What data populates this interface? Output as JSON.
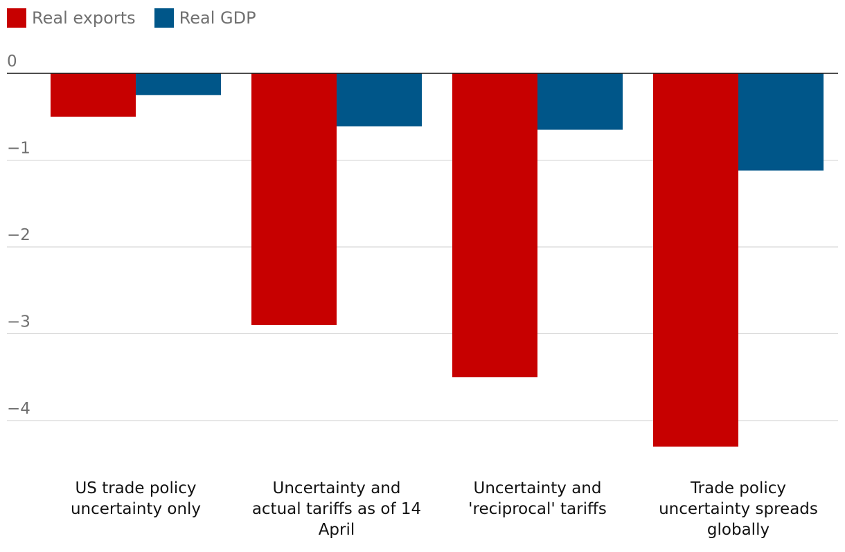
{
  "chart_data": {
    "type": "bar",
    "categories": [
      [
        "US trade policy",
        "uncertainty only"
      ],
      [
        "Uncertainty and",
        "actual tariffs as of 14",
        "April"
      ],
      [
        "Uncertainty and",
        "'reciprocal' tariffs"
      ],
      [
        "Trade policy",
        "uncertainty spreads",
        "globally"
      ]
    ],
    "series": [
      {
        "name": "Real exports",
        "color": "#c70000",
        "values": [
          -0.5,
          -2.9,
          -3.5,
          -4.3
        ]
      },
      {
        "name": "Real GDP",
        "color": "#005689",
        "values": [
          -0.25,
          -0.61,
          -0.65,
          -1.12
        ]
      }
    ],
    "yticks": [
      0,
      -1,
      -2,
      -3,
      -4
    ],
    "ytick_labels": [
      "0",
      "−1",
      "−2",
      "−3",
      "−4"
    ],
    "ylim": [
      -4.4,
      0
    ],
    "title": "",
    "xlabel": "",
    "ylabel": "",
    "legend_position": "top-left"
  }
}
